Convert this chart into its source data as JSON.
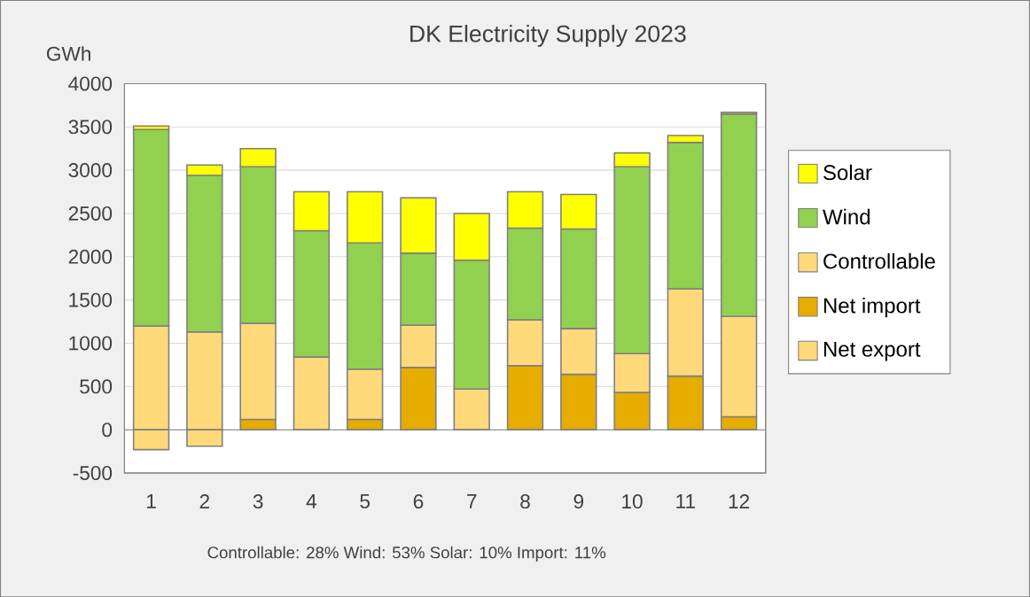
{
  "chart_data": {
    "type": "bar",
    "title": "DK Electricity Supply 2023",
    "ylabel": "GWh",
    "stacked": true,
    "categories": [
      "1",
      "2",
      "3",
      "4",
      "5",
      "6",
      "7",
      "8",
      "9",
      "10",
      "11",
      "12"
    ],
    "series": [
      {
        "name": "Net export",
        "color": "#ffd97a",
        "values": [
          -230,
          -190,
          null,
          null,
          null,
          null,
          null,
          null,
          null,
          null,
          null,
          null
        ]
      },
      {
        "name": "Net import",
        "color": "#e6ac00",
        "values": [
          null,
          null,
          120,
          null,
          120,
          720,
          null,
          740,
          640,
          430,
          620,
          150
        ]
      },
      {
        "name": "Controllable",
        "color": "#ffd97a",
        "values": [
          1200,
          1130,
          1110,
          840,
          580,
          490,
          470,
          530,
          530,
          450,
          1010,
          1160
        ]
      },
      {
        "name": "Wind",
        "color": "#92d050",
        "values": [
          2270,
          1810,
          1810,
          1460,
          1460,
          830,
          1490,
          1060,
          1150,
          2160,
          1690,
          2340
        ]
      },
      {
        "name": "Solar",
        "color": "#ffff00",
        "values": [
          40,
          120,
          210,
          450,
          590,
          640,
          540,
          420,
          400,
          160,
          80,
          20
        ]
      }
    ],
    "ylim": [
      -500,
      4000
    ],
    "yticks": [
      -500,
      0,
      500,
      1000,
      1500,
      2000,
      2500,
      3000,
      3500,
      4000
    ],
    "grid": "y",
    "legend": "right",
    "annotations": [
      "Controllable: 28% Wind: 53% Solar: 10% Import: 11%"
    ]
  }
}
